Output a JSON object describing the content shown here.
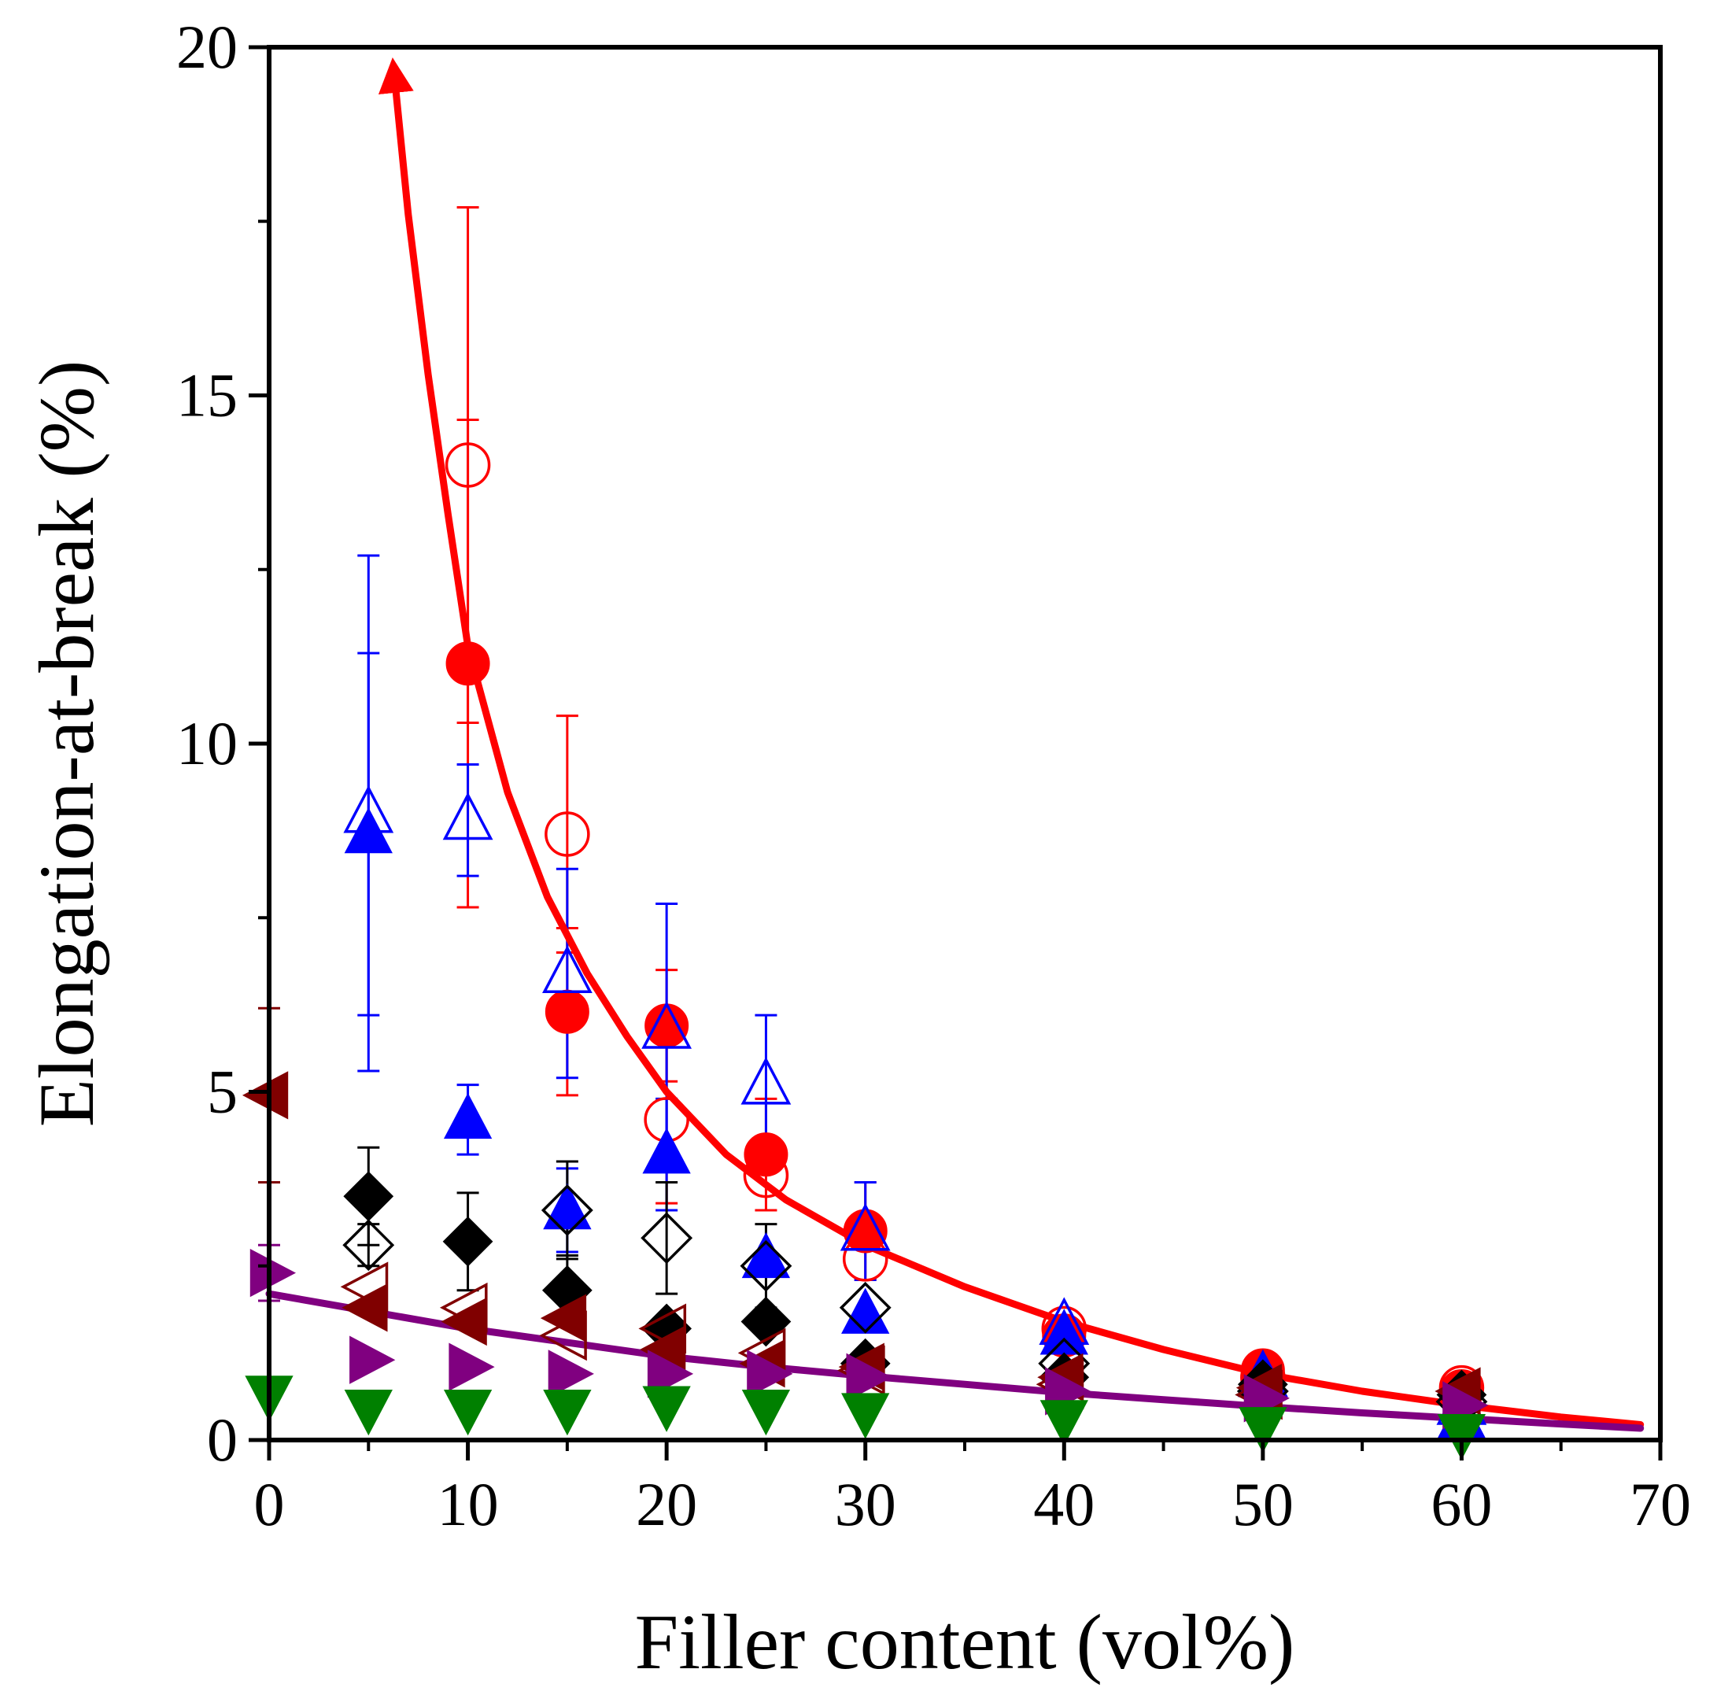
{
  "chart_data": {
    "type": "scatter",
    "title": "",
    "xlabel": "Filler content (vol%)",
    "ylabel": "Elongation-at-break (%)",
    "xlim": [
      0,
      70
    ],
    "ylim": [
      0,
      20
    ],
    "x_ticks": [
      0,
      10,
      20,
      30,
      40,
      50,
      60,
      70
    ],
    "y_ticks": [
      0,
      5,
      10,
      15,
      20
    ],
    "x_tick_labels": [
      "0",
      "10",
      "20",
      "30",
      "40",
      "50",
      "60",
      "70"
    ],
    "y_tick_labels": [
      "0",
      "5",
      "10",
      "15",
      "20"
    ],
    "grid": false,
    "legend": "none",
    "series": [
      {
        "name": "red filled circles",
        "marker": "circle",
        "filled": true,
        "color": "#ff0000",
        "points": [
          {
            "x": 10,
            "y": 11.15,
            "err": 3.5
          },
          {
            "x": 15,
            "y": 6.15,
            "err": 1.2
          },
          {
            "x": 20,
            "y": 5.95,
            "err": 0.8
          },
          {
            "x": 25,
            "y": 4.1,
            "err": 0.8
          },
          {
            "x": 30,
            "y": 3.0,
            "err": 0.7
          },
          {
            "x": 40,
            "y": 1.5
          },
          {
            "x": 50,
            "y": 1.0
          },
          {
            "x": 60,
            "y": 0.7
          }
        ]
      },
      {
        "name": "red open circles",
        "marker": "circle",
        "filled": false,
        "color": "#ff0000",
        "points": [
          {
            "x": 10,
            "y": 14.0,
            "err": 3.7
          },
          {
            "x": 15,
            "y": 8.7,
            "err": 1.7
          },
          {
            "x": 20,
            "y": 4.6,
            "err": 1.2
          },
          {
            "x": 25,
            "y": 3.8
          },
          {
            "x": 30,
            "y": 2.6
          },
          {
            "x": 40,
            "y": 1.6
          },
          {
            "x": 50,
            "y": 0.9
          },
          {
            "x": 60,
            "y": 0.75
          }
        ]
      },
      {
        "name": "blue open triangles up",
        "marker": "triangle-up",
        "filled": false,
        "color": "#0000ff",
        "points": [
          {
            "x": 5,
            "y": 9.0,
            "err": 3.7
          },
          {
            "x": 10,
            "y": 8.9,
            "err": 0.8
          },
          {
            "x": 15,
            "y": 6.7,
            "err": 1.5
          },
          {
            "x": 20,
            "y": 5.9,
            "err": 1.8
          },
          {
            "x": 25,
            "y": 5.1,
            "err": 1.0
          },
          {
            "x": 30,
            "y": 3.0,
            "err": 0.7
          },
          {
            "x": 40,
            "y": 1.65
          },
          {
            "x": 50,
            "y": 0.9
          },
          {
            "x": 60,
            "y": 0.5
          }
        ]
      },
      {
        "name": "blue filled triangles up",
        "marker": "triangle-up",
        "filled": true,
        "color": "#0000ff",
        "points": [
          {
            "x": 5,
            "y": 8.7,
            "err": 2.6
          },
          {
            "x": 10,
            "y": 4.6,
            "err": 0.5
          },
          {
            "x": 15,
            "y": 3.3,
            "err": 0.6
          },
          {
            "x": 20,
            "y": 4.1,
            "err": 0.8
          },
          {
            "x": 25,
            "y": 2.6
          },
          {
            "x": 30,
            "y": 1.8
          },
          {
            "x": 40,
            "y": 1.5
          },
          {
            "x": 50,
            "y": 0.9
          },
          {
            "x": 60,
            "y": 0.3
          }
        ]
      },
      {
        "name": "black filled diamonds",
        "marker": "diamond",
        "filled": true,
        "color": "#000000",
        "points": [
          {
            "x": 5,
            "y": 3.5,
            "err": 0.7
          },
          {
            "x": 10,
            "y": 2.85,
            "err": 0.7
          },
          {
            "x": 15,
            "y": 2.15,
            "err": 0.5
          },
          {
            "x": 20,
            "y": 1.6
          },
          {
            "x": 25,
            "y": 1.7
          },
          {
            "x": 30,
            "y": 1.1
          },
          {
            "x": 40,
            "y": 0.9
          },
          {
            "x": 50,
            "y": 0.8
          },
          {
            "x": 60,
            "y": 0.65
          }
        ]
      },
      {
        "name": "black open diamonds",
        "marker": "diamond",
        "filled": false,
        "color": "#000000",
        "points": [
          {
            "x": 5,
            "y": 2.8,
            "err": 0.3
          },
          {
            "x": 15,
            "y": 3.3,
            "err": 0.7
          },
          {
            "x": 20,
            "y": 2.9,
            "err": 0.8
          },
          {
            "x": 25,
            "y": 2.5,
            "err": 0.6
          },
          {
            "x": 30,
            "y": 1.9
          },
          {
            "x": 40,
            "y": 1.1
          },
          {
            "x": 50,
            "y": 0.7
          },
          {
            "x": 60,
            "y": 0.55
          }
        ]
      },
      {
        "name": "dark red filled triangles left",
        "marker": "triangle-left",
        "filled": true,
        "color": "#800000",
        "points": [
          {
            "x": 0,
            "y": 4.95,
            "err": 1.25
          },
          {
            "x": 5,
            "y": 1.9
          },
          {
            "x": 10,
            "y": 1.7
          },
          {
            "x": 15,
            "y": 1.75
          },
          {
            "x": 20,
            "y": 1.3
          },
          {
            "x": 25,
            "y": 1.1
          },
          {
            "x": 30,
            "y": 1.05
          },
          {
            "x": 40,
            "y": 0.9
          },
          {
            "x": 50,
            "y": 0.75
          },
          {
            "x": 60,
            "y": 0.7
          }
        ]
      },
      {
        "name": "dark red open triangles left",
        "marker": "triangle-left",
        "filled": false,
        "color": "#800000",
        "points": [
          {
            "x": 5,
            "y": 2.2
          },
          {
            "x": 10,
            "y": 1.9
          },
          {
            "x": 15,
            "y": 1.5
          },
          {
            "x": 20,
            "y": 1.6
          },
          {
            "x": 25,
            "y": 1.25
          },
          {
            "x": 30,
            "y": 1.0
          },
          {
            "x": 40,
            "y": 0.8
          },
          {
            "x": 50,
            "y": 0.65
          }
        ]
      },
      {
        "name": "purple filled triangles right",
        "marker": "triangle-right",
        "filled": true,
        "color": "#800080",
        "points": [
          {
            "x": 0,
            "y": 2.4,
            "err": 0.4
          },
          {
            "x": 5,
            "y": 1.15
          },
          {
            "x": 10,
            "y": 1.05
          },
          {
            "x": 15,
            "y": 0.95
          },
          {
            "x": 20,
            "y": 0.95
          },
          {
            "x": 25,
            "y": 0.95
          },
          {
            "x": 30,
            "y": 0.9
          },
          {
            "x": 40,
            "y": 0.7
          },
          {
            "x": 50,
            "y": 0.6
          },
          {
            "x": 60,
            "y": 0.5
          }
        ]
      },
      {
        "name": "green filled triangles down",
        "marker": "triangle-down",
        "filled": true,
        "color": "#008000",
        "points": [
          {
            "x": 0,
            "y": 0.65
          },
          {
            "x": 5,
            "y": 0.45
          },
          {
            "x": 10,
            "y": 0.45
          },
          {
            "x": 15,
            "y": 0.45
          },
          {
            "x": 20,
            "y": 0.5
          },
          {
            "x": 25,
            "y": 0.45
          },
          {
            "x": 30,
            "y": 0.4
          },
          {
            "x": 40,
            "y": 0.3
          },
          {
            "x": 50,
            "y": 0.2
          },
          {
            "x": 60,
            "y": 0.1
          }
        ]
      }
    ],
    "fit_curves": [
      {
        "name": "red fit curve",
        "color": "#ff0000",
        "arrow_at_start": true,
        "x": [
          6.3,
          7,
          8,
          9,
          10,
          12,
          14,
          16,
          18,
          20,
          23,
          26,
          30,
          35,
          40,
          45,
          50,
          55,
          60,
          65,
          69
        ],
        "y": [
          19.6,
          17.6,
          15.3,
          13.3,
          11.4,
          9.3,
          7.8,
          6.7,
          5.8,
          5.0,
          4.1,
          3.45,
          2.8,
          2.2,
          1.7,
          1.3,
          0.95,
          0.7,
          0.5,
          0.33,
          0.22
        ]
      },
      {
        "name": "purple fit curve",
        "color": "#800080",
        "arrow_at_start": false,
        "x": [
          0,
          5,
          10,
          15,
          20,
          25,
          30,
          35,
          40,
          45,
          50,
          55,
          60,
          65,
          69
        ],
        "y": [
          2.1,
          1.85,
          1.6,
          1.4,
          1.2,
          1.05,
          0.92,
          0.8,
          0.68,
          0.58,
          0.48,
          0.39,
          0.31,
          0.23,
          0.17
        ]
      }
    ]
  }
}
